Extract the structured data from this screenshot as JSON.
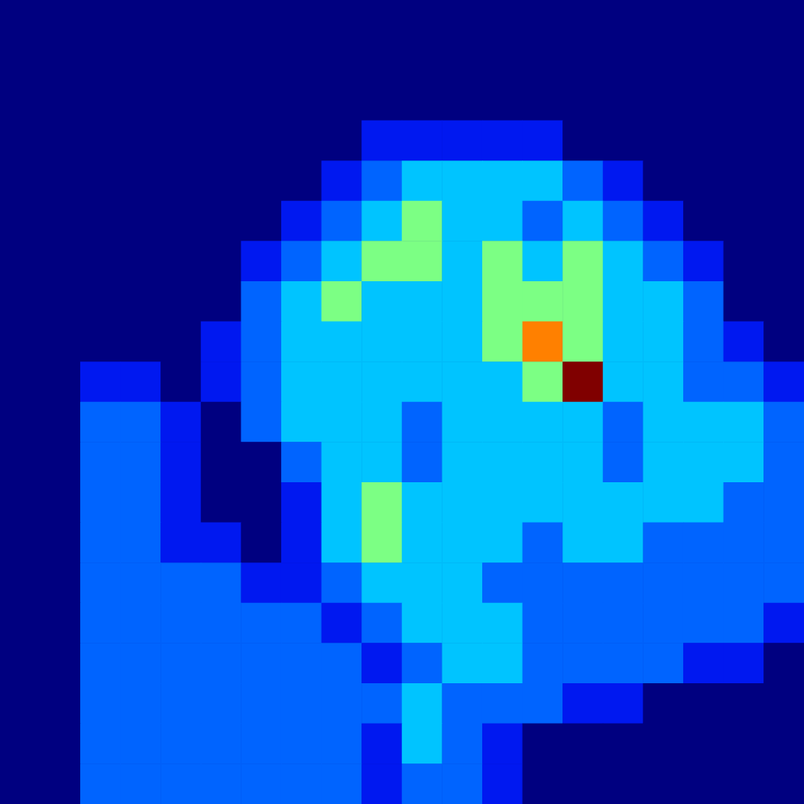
{
  "chart_data": {
    "type": "heatmap",
    "tick_labels": false,
    "grid": false,
    "zlim": [
      0,
      8
    ],
    "colors": [
      "#000080",
      "#0018f0",
      "#0064ff",
      "#00c4ff",
      "#7cff84",
      "#fff000",
      "#ff8000",
      "#ff1000",
      "#800000"
    ],
    "cells": [
      [
        0,
        0,
        0,
        0,
        0,
        0,
        0,
        0,
        0,
        0,
        0,
        0,
        0,
        0,
        0,
        0,
        0,
        0,
        0,
        0
      ],
      [
        0,
        0,
        0,
        0,
        0,
        0,
        0,
        0,
        0,
        0,
        0,
        0,
        0,
        0,
        0,
        0,
        0,
        0,
        0,
        0
      ],
      [
        0,
        0,
        0,
        0,
        0,
        0,
        0,
        0,
        0,
        0,
        0,
        0,
        0,
        0,
        0,
        0,
        0,
        0,
        0,
        0
      ],
      [
        0,
        0,
        0,
        0,
        0,
        0,
        0,
        0,
        0,
        1,
        1,
        1,
        1,
        1,
        0,
        0,
        0,
        0,
        0,
        0
      ],
      [
        0,
        0,
        0,
        0,
        0,
        0,
        0,
        0,
        1,
        2,
        3,
        3,
        3,
        3,
        2,
        1,
        0,
        0,
        0,
        0
      ],
      [
        0,
        0,
        0,
        0,
        0,
        0,
        0,
        1,
        2,
        3,
        4,
        3,
        3,
        2,
        3,
        2,
        1,
        0,
        0,
        0
      ],
      [
        0,
        0,
        0,
        0,
        0,
        0,
        1,
        2,
        3,
        4,
        4,
        3,
        4,
        3,
        4,
        3,
        2,
        1,
        0,
        0
      ],
      [
        0,
        0,
        0,
        0,
        0,
        0,
        2,
        3,
        4,
        3,
        3,
        3,
        4,
        4,
        4,
        3,
        3,
        2,
        0,
        0
      ],
      [
        0,
        0,
        0,
        0,
        0,
        1,
        2,
        3,
        3,
        3,
        3,
        3,
        4,
        6,
        4,
        3,
        3,
        2,
        1,
        0
      ],
      [
        0,
        0,
        1,
        1,
        0,
        1,
        2,
        3,
        3,
        3,
        3,
        3,
        3,
        4,
        8,
        3,
        3,
        2,
        2,
        1
      ],
      [
        0,
        0,
        2,
        2,
        1,
        0,
        2,
        3,
        3,
        3,
        2,
        3,
        3,
        3,
        3,
        2,
        3,
        3,
        3,
        2
      ],
      [
        0,
        0,
        2,
        2,
        1,
        0,
        0,
        2,
        3,
        3,
        2,
        3,
        3,
        3,
        3,
        2,
        3,
        3,
        3,
        2
      ],
      [
        0,
        0,
        2,
        2,
        1,
        0,
        0,
        1,
        3,
        4,
        3,
        3,
        3,
        3,
        3,
        3,
        3,
        3,
        2,
        2
      ],
      [
        0,
        0,
        2,
        2,
        1,
        1,
        0,
        1,
        3,
        4,
        3,
        3,
        3,
        2,
        3,
        3,
        2,
        2,
        2,
        2
      ],
      [
        0,
        0,
        2,
        2,
        2,
        2,
        1,
        1,
        2,
        3,
        3,
        3,
        2,
        2,
        2,
        2,
        2,
        2,
        2,
        2
      ],
      [
        0,
        0,
        2,
        2,
        2,
        2,
        2,
        2,
        1,
        2,
        3,
        3,
        3,
        2,
        2,
        2,
        2,
        2,
        2,
        1
      ],
      [
        0,
        0,
        2,
        2,
        2,
        2,
        2,
        2,
        2,
        1,
        2,
        3,
        3,
        2,
        2,
        2,
        2,
        1,
        1,
        0
      ],
      [
        0,
        0,
        2,
        2,
        2,
        2,
        2,
        2,
        2,
        2,
        3,
        2,
        2,
        2,
        1,
        1,
        0,
        0,
        0,
        0
      ],
      [
        0,
        0,
        2,
        2,
        2,
        2,
        2,
        2,
        2,
        1,
        3,
        2,
        1,
        0,
        0,
        0,
        0,
        0,
        0,
        0
      ],
      [
        0,
        0,
        2,
        2,
        2,
        2,
        2,
        2,
        2,
        1,
        2,
        2,
        1,
        0,
        0,
        0,
        0,
        0,
        0,
        0
      ]
    ]
  }
}
